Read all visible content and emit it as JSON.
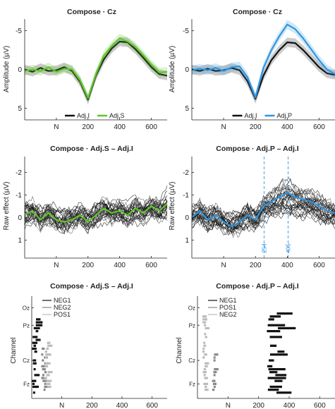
{
  "figure": {
    "panels": [
      {
        "id": "p1",
        "title": "Compose · Cz",
        "ylabel": "Amplitude (µV)"
      },
      {
        "id": "p2",
        "title": "Compose · Cz",
        "ylabel": "Amplitude (µV)"
      },
      {
        "id": "p3",
        "title": "Compose · Adj.S – Adj.I",
        "ylabel": "Raw effect (µV)"
      },
      {
        "id": "p4",
        "title": "Compose · Adj.P – Adj.I",
        "ylabel": "Raw effect (µV)"
      },
      {
        "id": "p5",
        "title": "Compose · Adj.S – Adj.I",
        "ylabel": "Channel"
      },
      {
        "id": "p6",
        "title": "Compose · Adj.P – Adj.I",
        "ylabel": "Channel"
      }
    ],
    "colors": {
      "black": "#111111",
      "green": "#5ec62a",
      "blue": "#2f95e0",
      "grey": "#888888",
      "lightgrey": "#bbbbbb"
    }
  },
  "chart_data": [
    {
      "type": "line",
      "panel": "p1",
      "title": "Compose · Cz",
      "xlabel": "",
      "ylabel": "Amplitude (µV)",
      "xlim": [
        -200,
        700
      ],
      "ylim": [
        -6.5,
        6.5
      ],
      "y_reversed": true,
      "xticks": [
        "N",
        "200",
        "400",
        "600"
      ],
      "yticks": [
        "-5",
        "0",
        "5"
      ],
      "x": [
        -200,
        -150,
        -100,
        -50,
        0,
        50,
        100,
        150,
        200,
        250,
        300,
        350,
        400,
        450,
        500,
        550,
        600,
        650,
        700
      ],
      "series": [
        {
          "name": "Adj.I",
          "color": "#111111",
          "values": [
            0,
            0.3,
            -0.2,
            0.2,
            0.1,
            -0.3,
            0.2,
            1.6,
            3.9,
            0.8,
            -1.3,
            -2.7,
            -3.6,
            -3.5,
            -2.6,
            -1.5,
            -0.3,
            0.6,
            0.8
          ]
        },
        {
          "name": "Adj.S",
          "color": "#5ec62a",
          "values": [
            0.2,
            0,
            0.2,
            -0.3,
            0.3,
            -0.1,
            0,
            1.4,
            3.7,
            0.6,
            -1.8,
            -3,
            -4,
            -3.6,
            -2.9,
            -1.8,
            -0.6,
            0.4,
            0.3
          ]
        }
      ],
      "legend": "bottom-center"
    },
    {
      "type": "line",
      "panel": "p2",
      "title": "Compose · Cz",
      "xlabel": "",
      "ylabel": "Amplitude (µV)",
      "xlim": [
        -200,
        700
      ],
      "ylim": [
        -6.5,
        6.5
      ],
      "y_reversed": true,
      "xticks": [
        "N",
        "200",
        "400",
        "600"
      ],
      "yticks": [
        "-5",
        "0",
        "5"
      ],
      "x": [
        -200,
        -150,
        -100,
        -50,
        0,
        50,
        100,
        150,
        200,
        250,
        300,
        350,
        400,
        450,
        500,
        550,
        600,
        650,
        700
      ],
      "series": [
        {
          "name": "Adj.I",
          "color": "#111111",
          "values": [
            0,
            0.2,
            -0.1,
            0.2,
            0.1,
            -0.2,
            0.1,
            1.5,
            3.8,
            0.8,
            -1.2,
            -2.5,
            -3.5,
            -3.4,
            -2.5,
            -1.4,
            -0.3,
            0.5,
            0.7
          ]
        },
        {
          "name": "Adj.P",
          "color": "#2f95e0",
          "values": [
            0.1,
            -0.1,
            0.1,
            -0.2,
            0.2,
            -0.3,
            -0.4,
            1,
            3.6,
            -0.2,
            -2.5,
            -4.3,
            -5.8,
            -5.2,
            -4,
            -2.6,
            -1.2,
            0,
            0.6
          ]
        }
      ],
      "legend": "bottom-center"
    },
    {
      "type": "line",
      "panel": "p3",
      "title": "Compose · Adj.S – Adj.I",
      "xlabel": "",
      "ylabel": "Raw effect (µV)",
      "xlim": [
        -200,
        700
      ],
      "ylim": [
        -2.7,
        1.8
      ],
      "y_reversed": true,
      "xticks": [
        "N",
        "200",
        "400",
        "600"
      ],
      "yticks": [
        "-2",
        "-1",
        "0",
        "1"
      ],
      "x": [
        -200,
        -150,
        -100,
        -50,
        0,
        50,
        100,
        150,
        200,
        250,
        300,
        350,
        400,
        450,
        500,
        550,
        600,
        650,
        700
      ],
      "series": [
        {
          "color": "#5ec62a",
          "values": [
            -0.1,
            -0.3,
            0.1,
            -0.2,
            0.1,
            0.2,
            0.1,
            -0.1,
            0.2,
            -0.1,
            -0.4,
            -0.2,
            -0.3,
            -0.1,
            -0.4,
            -0.2,
            -0.5,
            -0.3,
            -0.6
          ]
        }
      ],
      "grey_channels": 30,
      "vlines": []
    },
    {
      "type": "line",
      "panel": "p4",
      "title": "Compose · Adj.P – Adj.I",
      "xlabel": "",
      "ylabel": "Raw effect (µV)",
      "xlim": [
        -200,
        700
      ],
      "ylim": [
        -2.7,
        1.8
      ],
      "y_reversed": true,
      "xticks": [
        "N",
        "200",
        "400",
        "600"
      ],
      "yticks": [
        "-2",
        "-1",
        "0",
        "1"
      ],
      "x": [
        -200,
        -150,
        -100,
        -50,
        0,
        50,
        100,
        150,
        200,
        250,
        300,
        350,
        400,
        450,
        500,
        550,
        600,
        650,
        700
      ],
      "series": [
        {
          "color": "#2f95e0",
          "values": [
            0,
            -0.3,
            0.1,
            -0.1,
            0.2,
            0.4,
            0.2,
            -0.1,
            0.1,
            -0.5,
            -0.7,
            -0.9,
            -1.1,
            -0.9,
            -0.8,
            -0.7,
            -0.5,
            -0.3,
            -0.2
          ]
        }
      ],
      "grey_channels": 30,
      "vlines": [
        {
          "x": 254,
          "label": "254"
        },
        {
          "x": 405,
          "label": "405"
        }
      ]
    },
    {
      "type": "scatter",
      "panel": "p5",
      "title": "Compose · Adj.S – Adj.I",
      "xlabel": "",
      "ylabel": "Channel",
      "xlim": [
        -200,
        700
      ],
      "xticks": [
        "N",
        "200",
        "400",
        "600"
      ],
      "channel_labels": [
        "Oz",
        "Pz",
        "Cz",
        "Fz"
      ],
      "legend_entries": [
        {
          "name": "NEG1",
          "color": "#111111"
        },
        {
          "name": "NEG2",
          "color": "#888888"
        },
        {
          "name": "POS1",
          "color": "#bbbbbb"
        }
      ],
      "clusters": [
        {
          "name": "NEG1",
          "x_range": [
            -200,
            -140
          ],
          "row_range": [
            6,
            31
          ]
        },
        {
          "name": "NEG2",
          "x_range": [
            -140,
            -90
          ],
          "row_range": [
            16,
            31
          ]
        },
        {
          "name": "POS1",
          "x_range": [
            -120,
            -70
          ],
          "row_range": [
            14,
            31
          ]
        }
      ]
    },
    {
      "type": "scatter",
      "panel": "p6",
      "title": "Compose · Adj.P – Adj.I",
      "xlabel": "",
      "ylabel": "Channel",
      "xlim": [
        -200,
        700
      ],
      "xticks": [
        "N",
        "200",
        "400",
        "600"
      ],
      "channel_labels": [
        "Oz",
        "Pz",
        "Cz",
        "Fz"
      ],
      "legend_entries": [
        {
          "name": "NEG1",
          "color": "#111111"
        },
        {
          "name": "POS1",
          "color": "#888888"
        },
        {
          "name": "NEG2",
          "color": "#bbbbbb"
        }
      ],
      "clusters": [
        {
          "name": "NEG1",
          "x_range": [
            254,
            405
          ],
          "row_range": [
            3,
            31
          ]
        },
        {
          "name": "POS1",
          "x_range": [
            -110,
            -70
          ],
          "row_range": [
            18,
            31
          ]
        },
        {
          "name": "NEG2",
          "x_range": [
            -170,
            -130
          ],
          "row_range": [
            5,
            31
          ]
        }
      ]
    }
  ]
}
